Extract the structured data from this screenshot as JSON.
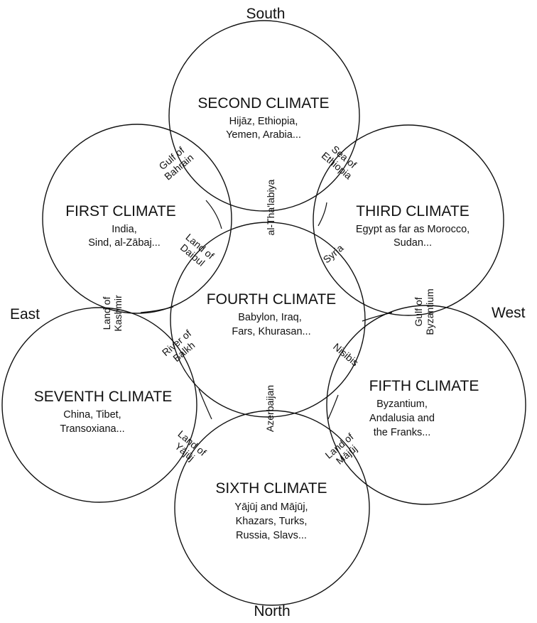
{
  "directions": {
    "south": "South",
    "north": "North",
    "east": "East",
    "west": "West"
  },
  "climates": {
    "first": {
      "title": "FIRST CLIMATE",
      "lines": [
        "India,",
        "Sind, al-Zābaj..."
      ]
    },
    "second": {
      "title": "SECOND CLIMATE",
      "lines": [
        "Hijāz, Ethiopia,",
        "Yemen, Arabia..."
      ]
    },
    "third": {
      "title": "THIRD CLIMATE",
      "lines": [
        "Egypt as far as Morocco,",
        "Sudan..."
      ]
    },
    "fourth": {
      "title": "FOURTH CLIMATE",
      "lines": [
        "Babylon, Iraq,",
        "Fars, Khurasan..."
      ]
    },
    "fifth": {
      "title": "FIFTH CLIMATE",
      "lines": [
        "Byzantium,",
        "Andalusia and",
        "the Franks..."
      ]
    },
    "sixth": {
      "title": "SIXTH CLIMATE",
      "lines": [
        "Yājūj and Mājūj,",
        "Khazars, Turks,",
        "Russia, Slavs..."
      ]
    },
    "seventh": {
      "title": "SEVENTH CLIMATE",
      "lines": [
        "China, Tibet,",
        "Transoxiana..."
      ]
    }
  },
  "boundaries": {
    "gulf_of_bahrain": [
      "Gulf of",
      "Bahrain"
    ],
    "sea_of_ethiopia": [
      "Sea of",
      "Ethiopia"
    ],
    "al_thalabiya": [
      "al-Tha'labiya"
    ],
    "land_of_daibul": [
      "Land of",
      "Daibul"
    ],
    "syria": [
      "Syria"
    ],
    "land_of_kashmir": [
      "Land of",
      "Kashmir"
    ],
    "gulf_of_byzantium": [
      "Gulf of",
      "Byzantium"
    ],
    "river_of_balkh": [
      "River of",
      "Balkh"
    ],
    "nisibis": [
      "Nisibis"
    ],
    "azerbaijan": [
      "Azerbaijan"
    ],
    "land_of_yajuj": [
      "Land of",
      "Yājūj"
    ],
    "land_of_majuj": [
      "Land of",
      "Mājūj"
    ]
  }
}
